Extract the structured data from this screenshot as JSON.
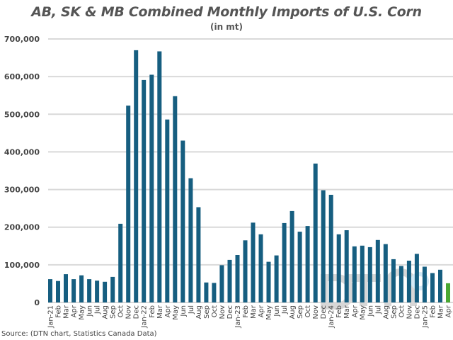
{
  "chart_data": {
    "type": "bar",
    "title": "AB, SK & MB Combined Monthly Imports of U.S. Corn",
    "subtitle": "(in mt)",
    "xlabel": "",
    "ylabel": "",
    "ylim": [
      0,
      700000
    ],
    "yticks": [
      0,
      100000,
      200000,
      300000,
      400000,
      500000,
      600000,
      700000
    ],
    "ytick_labels": [
      "0",
      "100,000",
      "200,000",
      "300,000",
      "400,000",
      "500,000",
      "600,000",
      "700,000"
    ],
    "grid": true,
    "categories": [
      "Jan-21",
      "Feb",
      "Mar",
      "Apr",
      "May",
      "Jun",
      "Jul",
      "Aug",
      "Sep",
      "Oct",
      "Nov",
      "Dec",
      "Jan-22",
      "Feb",
      "Mar",
      "Apr",
      "May",
      "Jun",
      "Jul",
      "Aug",
      "Sep",
      "Oct",
      "Nov",
      "Dec",
      "Jan-23",
      "Feb",
      "Mar",
      "Apr",
      "May",
      "Jun",
      "Jul",
      "Aug",
      "Sep",
      "Oct",
      "Nov",
      "Dec",
      "Jan-24",
      "Feb",
      "Mar",
      "Apr",
      "May",
      "Jun",
      "Jul",
      "Aug",
      "Sep",
      "Oct",
      "Nov",
      "Dec",
      "Jan-25",
      "Feb",
      "Mar",
      "Apr"
    ],
    "values": [
      62000,
      57000,
      75000,
      62000,
      72000,
      62000,
      58000,
      55000,
      68000,
      209000,
      523000,
      670000,
      591000,
      605000,
      667000,
      486000,
      548000,
      430000,
      330000,
      253000,
      53000,
      52000,
      99000,
      113000,
      126000,
      165000,
      212000,
      181000,
      108000,
      125000,
      211000,
      243000,
      188000,
      203000,
      369000,
      298000,
      286000,
      181000,
      192000,
      149000,
      151000,
      147000,
      166000,
      155000,
      115000,
      97000,
      111000,
      129000,
      95000,
      78000,
      87000,
      51000
    ],
    "colors": {
      "default": "#165e80",
      "highlight": "#4aa832"
    },
    "highlight_last": true
  },
  "source": "Source:  (DTN chart, Statistics Canada Data)",
  "watermark": "DTN"
}
